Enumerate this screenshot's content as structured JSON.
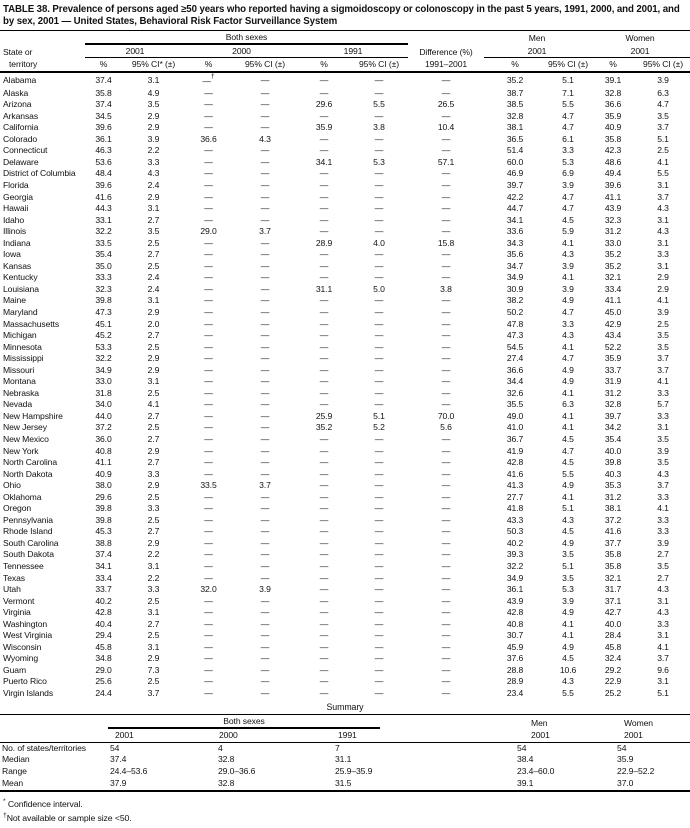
{
  "title": "TABLE 38. Prevalence of persons aged ≥50 years who reported having a sigmoidoscopy or colonoscopy in the past 5 years, 1991, 2000, and 2001, and by sex, 2001 — United States, Behavioral Risk Factor Surveillance System",
  "table": {
    "header": {
      "state_line1": "State or",
      "state_line2": "territory",
      "both_sexes": "Both sexes",
      "men": "Men",
      "women": "Women",
      "year_2001": "2001",
      "year_2000": "2000",
      "year_1991": "1991",
      "men_year": "2001",
      "women_year": "2001",
      "pct": "%",
      "ci_star": "95% CI* (±)",
      "ci": "95% CI (±)",
      "difference_line1": "Difference (%)",
      "difference_line2": "1991–2001"
    },
    "rows": [
      {
        "state": "Alabama",
        "v": [
          "37.4",
          "3.1",
          "—†",
          "—",
          "—",
          "—",
          "—",
          "35.2",
          "5.1",
          "39.1",
          "3.9"
        ]
      },
      {
        "state": "Alaska",
        "v": [
          "35.8",
          "4.9",
          "—",
          "—",
          "—",
          "—",
          "—",
          "38.7",
          "7.1",
          "32.8",
          "6.3"
        ]
      },
      {
        "state": "Arizona",
        "v": [
          "37.4",
          "3.5",
          "—",
          "—",
          "29.6",
          "5.5",
          "26.5",
          "38.5",
          "5.5",
          "36.6",
          "4.7"
        ]
      },
      {
        "state": "Arkansas",
        "v": [
          "34.5",
          "2.9",
          "—",
          "—",
          "—",
          "—",
          "—",
          "32.8",
          "4.7",
          "35.9",
          "3.5"
        ]
      },
      {
        "state": "California",
        "v": [
          "39.6",
          "2.9",
          "—",
          "—",
          "35.9",
          "3.8",
          "10.4",
          "38.1",
          "4.7",
          "40.9",
          "3.7"
        ]
      },
      {
        "state": "Colorado",
        "v": [
          "36.1",
          "3.9",
          "36.6",
          "4.3",
          "—",
          "—",
          "—",
          "36.5",
          "6.1",
          "35.8",
          "5.1"
        ]
      },
      {
        "state": "Connecticut",
        "v": [
          "46.3",
          "2.2",
          "—",
          "—",
          "—",
          "—",
          "—",
          "51.4",
          "3.3",
          "42.3",
          "2.5"
        ]
      },
      {
        "state": "Delaware",
        "v": [
          "53.6",
          "3.3",
          "—",
          "—",
          "34.1",
          "5.3",
          "57.1",
          "60.0",
          "5.3",
          "48.6",
          "4.1"
        ]
      },
      {
        "state": "District of Columbia",
        "v": [
          "48.4",
          "4.3",
          "—",
          "—",
          "—",
          "—",
          "—",
          "46.9",
          "6.9",
          "49.4",
          "5.5"
        ]
      },
      {
        "state": "Florida",
        "v": [
          "39.6",
          "2.4",
          "—",
          "—",
          "—",
          "—",
          "—",
          "39.7",
          "3.9",
          "39.6",
          "3.1"
        ]
      },
      {
        "state": "Georgia",
        "v": [
          "41.6",
          "2.9",
          "—",
          "—",
          "—",
          "—",
          "—",
          "42.2",
          "4.7",
          "41.1",
          "3.7"
        ]
      },
      {
        "state": "Hawaii",
        "v": [
          "44.3",
          "3.1",
          "—",
          "—",
          "—",
          "—",
          "—",
          "44.7",
          "4.7",
          "43.9",
          "4.3"
        ]
      },
      {
        "state": "Idaho",
        "v": [
          "33.1",
          "2.7",
          "—",
          "—",
          "—",
          "—",
          "—",
          "34.1",
          "4.5",
          "32.3",
          "3.1"
        ]
      },
      {
        "state": "Illinois",
        "v": [
          "32.2",
          "3.5",
          "29.0",
          "3.7",
          "—",
          "—",
          "—",
          "33.6",
          "5.9",
          "31.2",
          "4.3"
        ]
      },
      {
        "state": "Indiana",
        "v": [
          "33.5",
          "2.5",
          "—",
          "—",
          "28.9",
          "4.0",
          "15.8",
          "34.3",
          "4.1",
          "33.0",
          "3.1"
        ]
      },
      {
        "state": "Iowa",
        "v": [
          "35.4",
          "2.7",
          "—",
          "—",
          "—",
          "—",
          "—",
          "35.6",
          "4.3",
          "35.2",
          "3.3"
        ]
      },
      {
        "state": "Kansas",
        "v": [
          "35.0",
          "2.5",
          "—",
          "—",
          "—",
          "—",
          "—",
          "34.7",
          "3.9",
          "35.2",
          "3.1"
        ]
      },
      {
        "state": "Kentucky",
        "v": [
          "33.3",
          "2.4",
          "—",
          "—",
          "—",
          "—",
          "—",
          "34.9",
          "4.1",
          "32.1",
          "2.9"
        ]
      },
      {
        "state": "Louisiana",
        "v": [
          "32.3",
          "2.4",
          "—",
          "—",
          "31.1",
          "5.0",
          "3.8",
          "30.9",
          "3.9",
          "33.4",
          "2.9"
        ]
      },
      {
        "state": "Maine",
        "v": [
          "39.8",
          "3.1",
          "—",
          "—",
          "—",
          "—",
          "—",
          "38.2",
          "4.9",
          "41.1",
          "4.1"
        ]
      },
      {
        "state": "Maryland",
        "v": [
          "47.3",
          "2.9",
          "—",
          "—",
          "—",
          "—",
          "—",
          "50.2",
          "4.7",
          "45.0",
          "3.9"
        ]
      },
      {
        "state": "Massachusetts",
        "v": [
          "45.1",
          "2.0",
          "—",
          "—",
          "—",
          "—",
          "—",
          "47.8",
          "3.3",
          "42.9",
          "2.5"
        ]
      },
      {
        "state": "Michigan",
        "v": [
          "45.2",
          "2.7",
          "—",
          "—",
          "—",
          "—",
          "—",
          "47.3",
          "4.3",
          "43.4",
          "3.5"
        ]
      },
      {
        "state": "Minnesota",
        "v": [
          "53.3",
          "2.5",
          "—",
          "—",
          "—",
          "—",
          "—",
          "54.5",
          "4.1",
          "52.2",
          "3.5"
        ]
      },
      {
        "state": "Mississippi",
        "v": [
          "32.2",
          "2.9",
          "—",
          "—",
          "—",
          "—",
          "—",
          "27.4",
          "4.7",
          "35.9",
          "3.7"
        ]
      },
      {
        "state": "Missouri",
        "v": [
          "34.9",
          "2.9",
          "—",
          "—",
          "—",
          "—",
          "—",
          "36.6",
          "4.9",
          "33.7",
          "3.7"
        ]
      },
      {
        "state": "Montana",
        "v": [
          "33.0",
          "3.1",
          "—",
          "—",
          "—",
          "—",
          "—",
          "34.4",
          "4.9",
          "31.9",
          "4.1"
        ]
      },
      {
        "state": "Nebraska",
        "v": [
          "31.8",
          "2.5",
          "—",
          "—",
          "—",
          "—",
          "—",
          "32.6",
          "4.1",
          "31.2",
          "3.3"
        ]
      },
      {
        "state": "Nevada",
        "v": [
          "34.0",
          "4.1",
          "—",
          "—",
          "—",
          "—",
          "—",
          "35.5",
          "6.3",
          "32.8",
          "5.7"
        ]
      },
      {
        "state": "New Hampshire",
        "v": [
          "44.0",
          "2.7",
          "—",
          "—",
          "25.9",
          "5.1",
          "70.0",
          "49.0",
          "4.1",
          "39.7",
          "3.3"
        ]
      },
      {
        "state": "New Jersey",
        "v": [
          "37.2",
          "2.5",
          "—",
          "—",
          "35.2",
          "5.2",
          "5.6",
          "41.0",
          "4.1",
          "34.2",
          "3.1"
        ]
      },
      {
        "state": "New Mexico",
        "v": [
          "36.0",
          "2.7",
          "—",
          "—",
          "—",
          "—",
          "—",
          "36.7",
          "4.5",
          "35.4",
          "3.5"
        ]
      },
      {
        "state": "New York",
        "v": [
          "40.8",
          "2.9",
          "—",
          "—",
          "—",
          "—",
          "—",
          "41.9",
          "4.7",
          "40.0",
          "3.9"
        ]
      },
      {
        "state": "North Carolina",
        "v": [
          "41.1",
          "2.7",
          "—",
          "—",
          "—",
          "—",
          "—",
          "42.8",
          "4.5",
          "39.8",
          "3.5"
        ]
      },
      {
        "state": "North Dakota",
        "v": [
          "40.9",
          "3.3",
          "—",
          "—",
          "—",
          "—",
          "—",
          "41.6",
          "5.5",
          "40.3",
          "4.3"
        ]
      },
      {
        "state": "Ohio",
        "v": [
          "38.0",
          "2.9",
          "33.5",
          "3.7",
          "—",
          "—",
          "—",
          "41.3",
          "4.9",
          "35.3",
          "3.7"
        ]
      },
      {
        "state": "Oklahoma",
        "v": [
          "29.6",
          "2.5",
          "—",
          "—",
          "—",
          "—",
          "—",
          "27.7",
          "4.1",
          "31.2",
          "3.3"
        ]
      },
      {
        "state": "Oregon",
        "v": [
          "39.8",
          "3.3",
          "—",
          "—",
          "—",
          "—",
          "—",
          "41.8",
          "5.1",
          "38.1",
          "4.1"
        ]
      },
      {
        "state": "Pennsylvania",
        "v": [
          "39.8",
          "2.5",
          "—",
          "—",
          "—",
          "—",
          "—",
          "43.3",
          "4.3",
          "37.2",
          "3.3"
        ]
      },
      {
        "state": "Rhode Island",
        "v": [
          "45.3",
          "2.7",
          "—",
          "—",
          "—",
          "—",
          "—",
          "50.3",
          "4.5",
          "41.6",
          "3.3"
        ]
      },
      {
        "state": "South Carolina",
        "v": [
          "38.8",
          "2.9",
          "—",
          "—",
          "—",
          "—",
          "—",
          "40.2",
          "4.9",
          "37.7",
          "3.9"
        ]
      },
      {
        "state": "South Dakota",
        "v": [
          "37.4",
          "2.2",
          "—",
          "—",
          "—",
          "—",
          "—",
          "39.3",
          "3.5",
          "35.8",
          "2.7"
        ]
      },
      {
        "state": "Tennessee",
        "v": [
          "34.1",
          "3.1",
          "—",
          "—",
          "—",
          "—",
          "—",
          "32.2",
          "5.1",
          "35.8",
          "3.5"
        ]
      },
      {
        "state": "Texas",
        "v": [
          "33.4",
          "2.2",
          "—",
          "—",
          "—",
          "—",
          "—",
          "34.9",
          "3.5",
          "32.1",
          "2.7"
        ]
      },
      {
        "state": "Utah",
        "v": [
          "33.7",
          "3.3",
          "32.0",
          "3.9",
          "—",
          "—",
          "—",
          "36.1",
          "5.3",
          "31.7",
          "4.3"
        ]
      },
      {
        "state": "Vermont",
        "v": [
          "40.2",
          "2.5",
          "—",
          "—",
          "—",
          "—",
          "—",
          "43.9",
          "3.9",
          "37.1",
          "3.1"
        ]
      },
      {
        "state": "Virginia",
        "v": [
          "42.8",
          "3.1",
          "—",
          "—",
          "—",
          "—",
          "—",
          "42.8",
          "4.9",
          "42.7",
          "4.3"
        ]
      },
      {
        "state": "Washington",
        "v": [
          "40.4",
          "2.7",
          "—",
          "—",
          "—",
          "—",
          "—",
          "40.8",
          "4.1",
          "40.0",
          "3.3"
        ]
      },
      {
        "state": "West Virginia",
        "v": [
          "29.4",
          "2.5",
          "—",
          "—",
          "—",
          "—",
          "—",
          "30.7",
          "4.1",
          "28.4",
          "3.1"
        ]
      },
      {
        "state": "Wisconsin",
        "v": [
          "45.8",
          "3.1",
          "—",
          "—",
          "—",
          "—",
          "—",
          "45.9",
          "4.9",
          "45.8",
          "4.1"
        ]
      },
      {
        "state": "Wyoming",
        "v": [
          "34.8",
          "2.9",
          "—",
          "—",
          "—",
          "—",
          "—",
          "37.6",
          "4.5",
          "32.4",
          "3.7"
        ]
      },
      {
        "state": "Guam",
        "v": [
          "29.0",
          "7.3",
          "—",
          "—",
          "—",
          "—",
          "—",
          "28.8",
          "10.6",
          "29.2",
          "9.6"
        ]
      },
      {
        "state": "Puerto Rico",
        "v": [
          "25.6",
          "2.5",
          "—",
          "—",
          "—",
          "—",
          "—",
          "28.9",
          "4.3",
          "22.9",
          "3.1"
        ]
      },
      {
        "state": "Virgin Islands",
        "v": [
          "24.4",
          "3.7",
          "—",
          "—",
          "—",
          "—",
          "—",
          "23.4",
          "5.5",
          "25.2",
          "5.1"
        ]
      }
    ]
  },
  "summary": {
    "title": "Summary",
    "header": {
      "both_sexes": "Both sexes",
      "men": "Men",
      "women": "Women",
      "year_2001": "2001",
      "year_2000": "2000",
      "year_1991": "1991",
      "men_year": "2001",
      "women_year": "2001"
    },
    "rows": [
      {
        "label": "No. of states/territories",
        "v": [
          "54",
          "4",
          "7",
          "54",
          "54"
        ]
      },
      {
        "label": "Median",
        "v": [
          "37.4",
          "32.8",
          "31.1",
          "38.4",
          "35.9"
        ]
      },
      {
        "label": "Range",
        "v": [
          "24.4–53.6",
          "29.0–36.6",
          "25.9–35.9",
          "23.4–60.0",
          "22.9–52.2"
        ]
      },
      {
        "label": "Mean",
        "v": [
          "37.9",
          "32.8",
          "31.5",
          "39.1",
          "37.0"
        ]
      }
    ]
  },
  "footnotes": [
    {
      "marker": "*",
      "text": "Confidence interval."
    },
    {
      "marker": "†",
      "text": "Not available or sample size <50."
    }
  ]
}
